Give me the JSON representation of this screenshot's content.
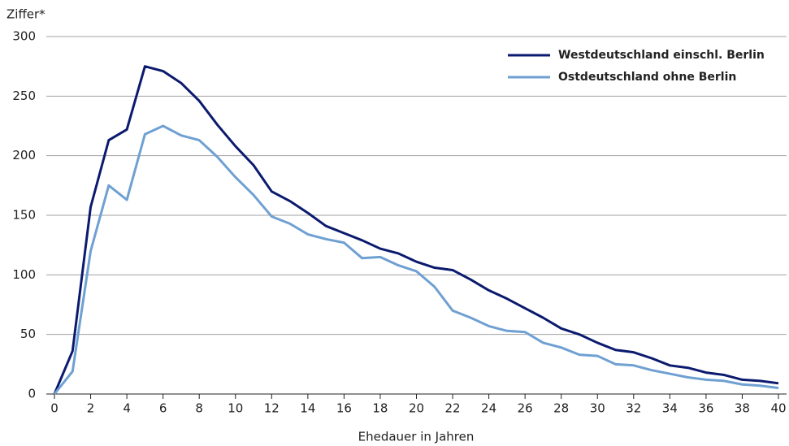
{
  "chart_data": {
    "type": "line",
    "y_label": "Ziffer*",
    "x_label": "Ehedauer in Jahren",
    "x": [
      0,
      1,
      2,
      3,
      4,
      5,
      6,
      7,
      8,
      9,
      10,
      11,
      12,
      13,
      14,
      15,
      16,
      17,
      18,
      19,
      20,
      21,
      22,
      23,
      24,
      25,
      26,
      27,
      28,
      29,
      30,
      31,
      32,
      33,
      34,
      35,
      36,
      37,
      38,
      39,
      40
    ],
    "series": [
      {
        "name": "Westdeutschland einschl. Berlin",
        "color": "#0b1a6e",
        "values": [
          0,
          36,
          157,
          213,
          222,
          275,
          271,
          261,
          246,
          226,
          208,
          192,
          170,
          162,
          152,
          141,
          135,
          129,
          122,
          118,
          111,
          106,
          104,
          96,
          87,
          80,
          72,
          64,
          55,
          50,
          43,
          37,
          35,
          30,
          24,
          22,
          18,
          16,
          12,
          11,
          9
        ]
      },
      {
        "name": "Ostdeutschland ohne Berlin",
        "color": "#6fa0d2",
        "values": [
          0,
          19,
          120,
          175,
          163,
          218,
          225,
          217,
          213,
          199,
          182,
          167,
          149,
          143,
          134,
          130,
          127,
          114,
          115,
          108,
          103,
          90,
          70,
          64,
          57,
          53,
          52,
          43,
          39,
          33,
          32,
          25,
          24,
          20,
          17,
          14,
          12,
          11,
          8,
          7,
          5
        ]
      }
    ],
    "xlim": [
      0,
      40
    ],
    "xticks": [
      0,
      2,
      4,
      6,
      8,
      10,
      12,
      14,
      16,
      18,
      20,
      22,
      24,
      26,
      28,
      30,
      32,
      34,
      36,
      38,
      40
    ],
    "ylim": [
      0,
      300
    ],
    "yticks": [
      0,
      50,
      100,
      150,
      200,
      250,
      300
    ],
    "grid": true,
    "legend": "top-right"
  }
}
